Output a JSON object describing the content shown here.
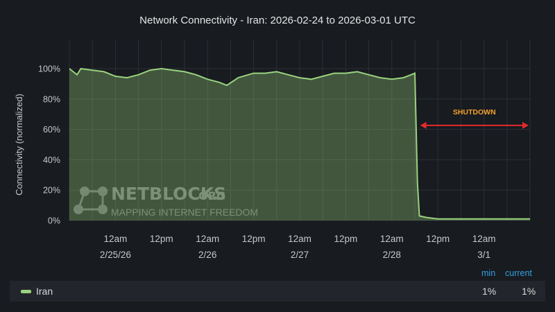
{
  "chart_data": {
    "type": "area",
    "title": "Network Connectivity - Iran: 2026-02-24 to 2026-03-01 UTC",
    "ylabel": "Connectivity (normalized)",
    "ylim": [
      0,
      100
    ],
    "yticks": [
      "100%",
      "80%",
      "60%",
      "40%",
      "20%",
      "0%"
    ],
    "xlim": [
      "2026-02-24T12:00",
      "2026-03-01T12:00"
    ],
    "xticks": [
      {
        "t": "2026-02-25T00:00",
        "lines": [
          "12am",
          "2/25/26"
        ]
      },
      {
        "t": "2026-02-25T12:00",
        "lines": [
          "12pm"
        ]
      },
      {
        "t": "2026-02-26T00:00",
        "lines": [
          "12am",
          "2/26"
        ]
      },
      {
        "t": "2026-02-26T12:00",
        "lines": [
          "12pm"
        ]
      },
      {
        "t": "2026-02-27T00:00",
        "lines": [
          "12am",
          "2/27"
        ]
      },
      {
        "t": "2026-02-27T12:00",
        "lines": [
          "12pm"
        ]
      },
      {
        "t": "2026-02-28T00:00",
        "lines": [
          "12am",
          "2/28"
        ]
      },
      {
        "t": "2026-02-28T12:00",
        "lines": [
          "12pm"
        ]
      },
      {
        "t": "2026-03-01T00:00",
        "lines": [
          "12am",
          "3/1"
        ]
      }
    ],
    "grid": true,
    "series": [
      {
        "name": "Iran",
        "color": "#9ad27e",
        "points": [
          [
            "2026-02-24T12:00",
            100
          ],
          [
            "2026-02-24T14:00",
            96
          ],
          [
            "2026-02-24T15:00",
            100
          ],
          [
            "2026-02-24T18:00",
            99
          ],
          [
            "2026-02-24T21:00",
            98
          ],
          [
            "2026-02-25T00:00",
            95
          ],
          [
            "2026-02-25T03:00",
            94
          ],
          [
            "2026-02-25T06:00",
            96
          ],
          [
            "2026-02-25T09:00",
            99
          ],
          [
            "2026-02-25T12:00",
            100
          ],
          [
            "2026-02-25T15:00",
            99
          ],
          [
            "2026-02-25T18:00",
            98
          ],
          [
            "2026-02-25T21:00",
            96
          ],
          [
            "2026-02-26T00:00",
            93
          ],
          [
            "2026-02-26T03:00",
            91
          ],
          [
            "2026-02-26T05:00",
            89
          ],
          [
            "2026-02-26T08:00",
            94
          ],
          [
            "2026-02-26T12:00",
            97
          ],
          [
            "2026-02-26T15:00",
            97
          ],
          [
            "2026-02-26T18:00",
            98
          ],
          [
            "2026-02-26T21:00",
            96
          ],
          [
            "2026-02-27T00:00",
            94
          ],
          [
            "2026-02-27T03:00",
            93
          ],
          [
            "2026-02-27T06:00",
            95
          ],
          [
            "2026-02-27T09:00",
            97
          ],
          [
            "2026-02-27T12:00",
            97
          ],
          [
            "2026-02-27T15:00",
            98
          ],
          [
            "2026-02-27T18:00",
            96
          ],
          [
            "2026-02-27T21:00",
            94
          ],
          [
            "2026-02-28T00:00",
            93
          ],
          [
            "2026-02-28T03:00",
            94
          ],
          [
            "2026-02-28T05:00",
            96
          ],
          [
            "2026-02-28T06:00",
            97
          ],
          [
            "2026-02-28T06:40",
            25
          ],
          [
            "2026-02-28T07:10",
            3
          ],
          [
            "2026-02-28T09:00",
            2
          ],
          [
            "2026-02-28T12:00",
            1
          ],
          [
            "2026-02-28T18:00",
            1
          ],
          [
            "2026-03-01T00:00",
            1
          ],
          [
            "2026-03-01T06:00",
            1
          ],
          [
            "2026-03-01T12:00",
            1
          ]
        ]
      }
    ],
    "annotation": {
      "label": "SHUTDOWN",
      "from": "2026-02-28T07:00",
      "to": "2026-03-01T12:00",
      "value": 64,
      "color": "#e12b2b",
      "label_color": "#f2a12b"
    }
  },
  "watermark": {
    "brand": "NETBLOCKS",
    "suffix": ".ORG",
    "tagline": "MAPPING INTERNET FREEDOM"
  },
  "legend": {
    "headers": {
      "min": "min",
      "current": "current"
    },
    "rows": [
      {
        "name": "Iran",
        "min": "1%",
        "current": "1%"
      }
    ]
  }
}
